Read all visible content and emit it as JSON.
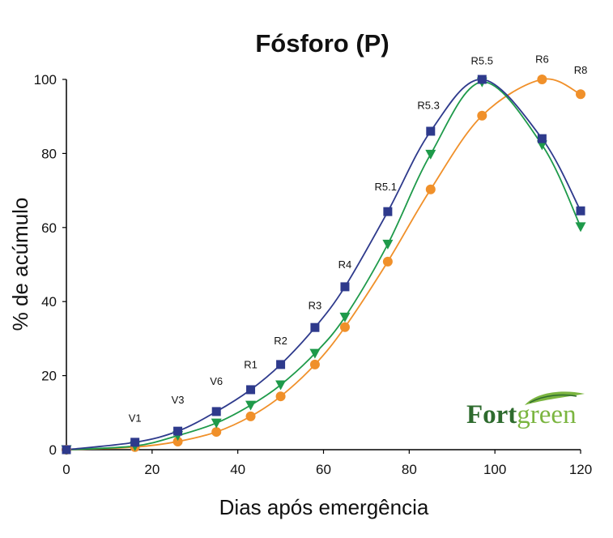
{
  "chart_data": {
    "type": "line",
    "title": "Fósforo (P)",
    "xlabel": "Dias após emergência",
    "ylabel": "% de acúmulo",
    "xlim": [
      0,
      120
    ],
    "ylim": [
      0,
      100
    ],
    "xticks": [
      0,
      20,
      40,
      60,
      80,
      100,
      120
    ],
    "yticks": [
      0,
      20,
      40,
      60,
      80,
      100
    ],
    "grid": false,
    "colors": {
      "series_1": "#2e3a8c",
      "series_2": "#1e9a4a",
      "series_3": "#f0902a"
    },
    "series": [
      {
        "marker": "square",
        "color": "#2e3a8c",
        "x": [
          0,
          16,
          26,
          35,
          43,
          50,
          58,
          65,
          75,
          85,
          97,
          111,
          120
        ],
        "y": [
          0,
          2,
          5,
          10.3,
          16.2,
          23,
          33,
          44,
          64.3,
          86,
          100,
          84,
          64.5
        ]
      },
      {
        "marker": "triangle-down",
        "color": "#1e9a4a",
        "x": [
          0,
          16,
          26,
          35,
          43,
          50,
          58,
          65,
          75,
          85,
          97,
          111,
          120
        ],
        "y": [
          0,
          1,
          3.8,
          7.2,
          12,
          17.5,
          26,
          35.8,
          55.5,
          79.8,
          99.3,
          82.3,
          60.2
        ]
      },
      {
        "marker": "circle",
        "color": "#f0902a",
        "x": [
          0,
          16,
          26,
          35,
          43,
          50,
          58,
          65,
          75,
          85,
          97,
          111,
          120
        ],
        "y": [
          0,
          0.7,
          2.2,
          4.8,
          9,
          14.4,
          23,
          33.1,
          50.8,
          70.3,
          90.2,
          100,
          96
        ]
      }
    ],
    "annotations": [
      {
        "text": "V1",
        "x": 16,
        "y": 7.5
      },
      {
        "text": "V3",
        "x": 26,
        "y": 12.5
      },
      {
        "text": "V6",
        "x": 35,
        "y": 17.5
      },
      {
        "text": "R1",
        "x": 43,
        "y": 22
      },
      {
        "text": "R2",
        "x": 50,
        "y": 28.5
      },
      {
        "text": "R3",
        "x": 58,
        "y": 38
      },
      {
        "text": "R4",
        "x": 65,
        "y": 49
      },
      {
        "text": "R5.1",
        "x": 74.5,
        "y": 70
      },
      {
        "text": "R5.3",
        "x": 84.5,
        "y": 92
      },
      {
        "text": "R5.5",
        "x": 97,
        "y": 104
      },
      {
        "text": "R6",
        "x": 111,
        "y": 104.5
      },
      {
        "text": "R8",
        "x": 120,
        "y": 101.5
      }
    ]
  },
  "logo": {
    "part1": "Fort",
    "part2": "green",
    "color_dark": "#2e6b2e",
    "color_light": "#7bb540"
  }
}
